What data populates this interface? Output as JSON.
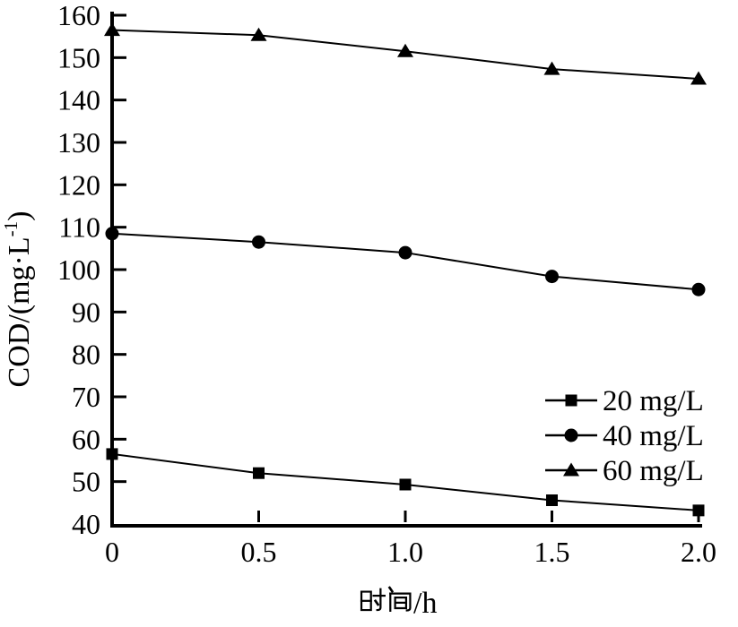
{
  "figure": {
    "background": "#ffffff",
    "ink_color": "#000000"
  },
  "chart_data": {
    "type": "line",
    "title": "",
    "x": [
      0,
      0.5,
      1.0,
      1.5,
      2.0
    ],
    "x_tick_labels": [
      "0",
      "0.5",
      "1.0",
      "1.5",
      "2.0"
    ],
    "y_tick_labels": [
      "40",
      "50",
      "60",
      "70",
      "80",
      "90",
      "100",
      "110",
      "120",
      "130",
      "140",
      "150",
      "160"
    ],
    "series": [
      {
        "name": "20 mg/L",
        "marker": "square",
        "values": [
          56.5,
          52.0,
          49.3,
          45.6,
          43.2
        ]
      },
      {
        "name": "40 mg/L",
        "marker": "circle",
        "values": [
          108.5,
          106.5,
          104.0,
          98.4,
          95.3
        ]
      },
      {
        "name": "60 mg/L",
        "marker": "triangle",
        "values": [
          156.5,
          155.3,
          151.5,
          147.3,
          145.0
        ]
      }
    ],
    "xlabel": "时间/h",
    "xlabel_latin": "/h",
    "ylabel": "COD/(mg·L⁻¹)",
    "ylabel_prefix": "COD/(mg·L",
    "ylabel_sup": "-1",
    "ylabel_suffix": ")",
    "xlim": [
      0,
      2.0
    ],
    "ylim": [
      40,
      160
    ],
    "y_tick_step": 10,
    "grid": false,
    "legend_position": "inside-right-lower-middle",
    "line_color": "#000000"
  }
}
